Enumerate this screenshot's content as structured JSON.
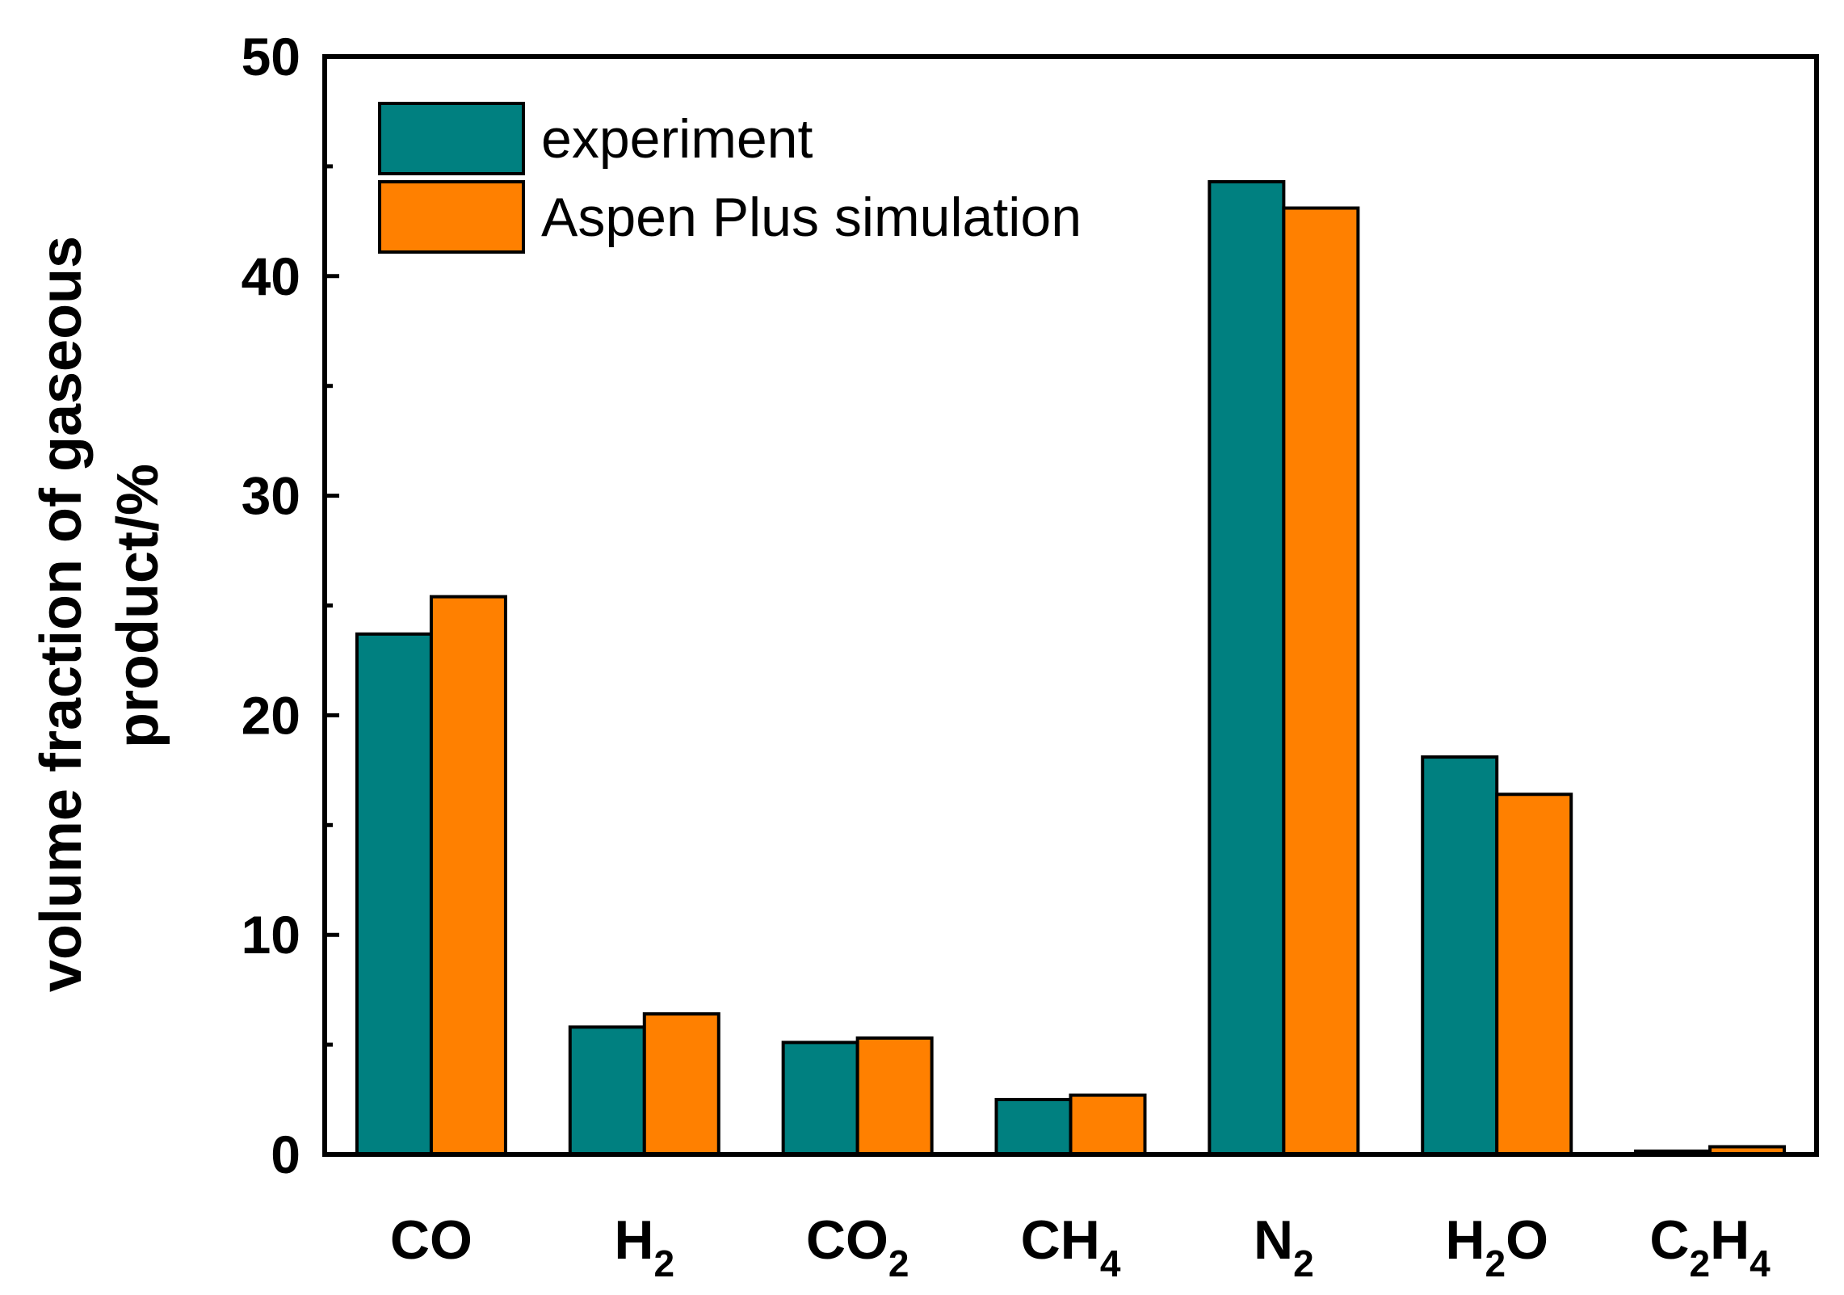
{
  "chart_data": {
    "type": "bar",
    "title": "",
    "xlabel": "",
    "ylabel_lines": [
      "volume fraction of gaseous",
      "product/%"
    ],
    "ylim": [
      0,
      50
    ],
    "yticks": [
      "0",
      "10",
      "20",
      "30",
      "40",
      "50"
    ],
    "categories": [
      {
        "base": "CO",
        "parts": [
          {
            "t": "CO",
            "sub": false
          }
        ]
      },
      {
        "base": "H2",
        "parts": [
          {
            "t": "H",
            "sub": false
          },
          {
            "t": "2",
            "sub": true
          }
        ]
      },
      {
        "base": "CO2",
        "parts": [
          {
            "t": "CO",
            "sub": false
          },
          {
            "t": "2",
            "sub": true
          }
        ]
      },
      {
        "base": "CH4",
        "parts": [
          {
            "t": "CH",
            "sub": false
          },
          {
            "t": "4",
            "sub": true
          }
        ]
      },
      {
        "base": "N2",
        "parts": [
          {
            "t": "N",
            "sub": false
          },
          {
            "t": "2",
            "sub": true
          }
        ]
      },
      {
        "base": "H2O",
        "parts": [
          {
            "t": "H",
            "sub": false
          },
          {
            "t": "2",
            "sub": true
          },
          {
            "t": "O",
            "sub": false
          }
        ]
      },
      {
        "base": "C2H4",
        "parts": [
          {
            "t": "C",
            "sub": false
          },
          {
            "t": "2",
            "sub": true
          },
          {
            "t": "H",
            "sub": false
          },
          {
            "t": "4",
            "sub": true
          }
        ]
      }
    ],
    "series": [
      {
        "name": "experiment",
        "color": "#008080",
        "values": [
          23.7,
          5.8,
          5.1,
          2.5,
          44.3,
          18.1,
          0.15
        ]
      },
      {
        "name": "Aspen Plus simulation",
        "color": "#ff8000",
        "values": [
          25.4,
          6.4,
          5.3,
          2.7,
          43.1,
          16.4,
          0.35
        ]
      }
    ],
    "legend_position": "top-left",
    "grid": false
  }
}
